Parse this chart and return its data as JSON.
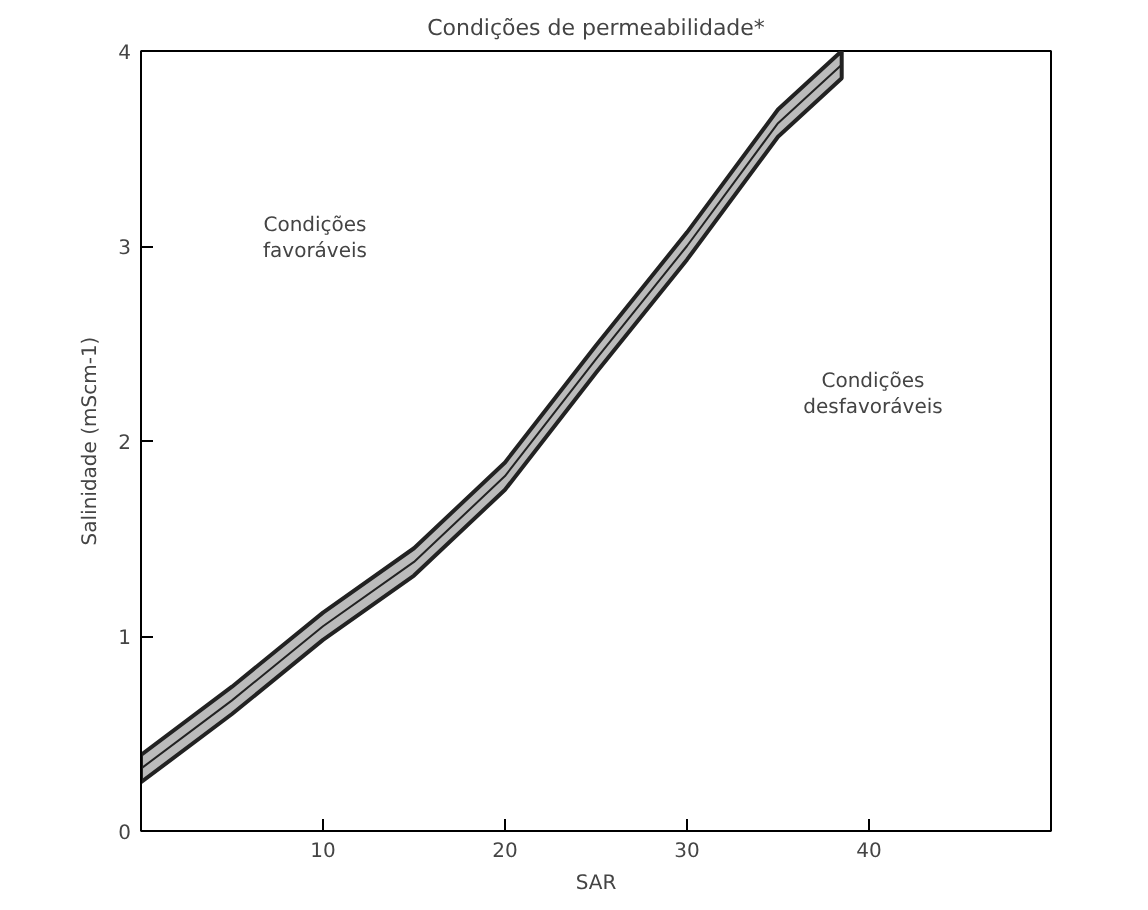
{
  "chart_data": {
    "type": "line",
    "title": "Condições de permeabilidade*",
    "xlabel": "SAR",
    "ylabel": "Salinidade (mScm-1)",
    "x": [
      0,
      5,
      10,
      15,
      20,
      25,
      30,
      35,
      38.5
    ],
    "series": [
      {
        "color": "#222222",
        "values": [
          0.32,
          0.67,
          1.05,
          1.38,
          1.82,
          2.42,
          3.0,
          3.63,
          3.93
        ],
        "lower": [
          0.25,
          0.6,
          0.98,
          1.31,
          1.75,
          2.35,
          2.93,
          3.56,
          3.86
        ],
        "upper": [
          0.39,
          0.74,
          1.12,
          1.45,
          1.89,
          2.49,
          3.07,
          3.7,
          4.0
        ]
      }
    ],
    "xlim": [
      0,
      50
    ],
    "ylim": [
      0,
      4
    ],
    "xticks": [
      10,
      20,
      30,
      40
    ],
    "yticks": [
      0,
      1,
      2,
      3,
      4
    ],
    "grid": false,
    "annotations": [
      "Condições\nfavoráveis",
      "Condições\ndesfavoráveis"
    ]
  }
}
